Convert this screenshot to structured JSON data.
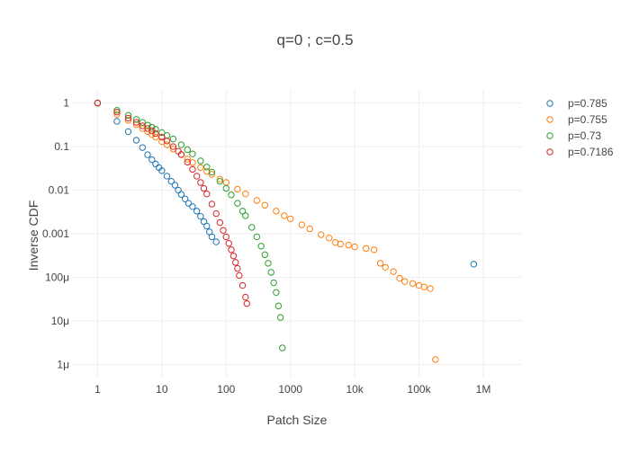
{
  "chart_data": {
    "type": "scatter",
    "title": "q=0 ; c=0.5",
    "xlabel": "Patch Size",
    "ylabel": "Inverse CDF",
    "x_scale": "log",
    "y_scale": "log",
    "xlim": [
      0.4,
      4000000
    ],
    "ylim": [
      5e-07,
      2
    ],
    "x_ticks": [
      {
        "value": 1,
        "label": "1"
      },
      {
        "value": 10,
        "label": "10"
      },
      {
        "value": 100,
        "label": "100"
      },
      {
        "value": 1000,
        "label": "1000"
      },
      {
        "value": 10000,
        "label": "10k"
      },
      {
        "value": 100000,
        "label": "100k"
      },
      {
        "value": 1000000,
        "label": "1M"
      }
    ],
    "y_ticks": [
      {
        "value": 1,
        "label": "1"
      },
      {
        "value": 0.1,
        "label": "0.1"
      },
      {
        "value": 0.01,
        "label": "0.01"
      },
      {
        "value": 0.001,
        "label": "0.001"
      },
      {
        "value": 0.0001,
        "label": "100μ"
      },
      {
        "value": 1e-05,
        "label": "10μ"
      },
      {
        "value": 1e-06,
        "label": "1μ"
      }
    ],
    "grid": true,
    "legend_position": "top-right",
    "series": [
      {
        "name": "p=0.785",
        "color": "#1f77b4",
        "x": [
          1,
          2,
          3,
          4,
          5,
          6,
          7,
          8,
          9,
          10,
          12,
          14,
          16,
          18,
          20,
          23,
          26,
          30,
          35,
          40,
          45,
          50,
          55,
          60,
          70,
          710000
        ],
        "y": [
          1,
          0.38,
          0.22,
          0.14,
          0.095,
          0.065,
          0.05,
          0.04,
          0.033,
          0.028,
          0.021,
          0.016,
          0.013,
          0.01,
          0.008,
          0.0063,
          0.005,
          0.0042,
          0.0033,
          0.0025,
          0.0019,
          0.0015,
          0.0011,
          0.00085,
          0.00065,
          0.0002
        ]
      },
      {
        "name": "p=0.755",
        "color": "#ff7f0e",
        "x": [
          1,
          2,
          3,
          4,
          5,
          6,
          7,
          8,
          10,
          12,
          15,
          20,
          25,
          30,
          40,
          50,
          60,
          80,
          100,
          150,
          200,
          300,
          400,
          600,
          800,
          1000,
          1500,
          2000,
          3000,
          4000,
          5000,
          6000,
          8000,
          10000,
          15000,
          20000,
          25000,
          30000,
          40000,
          50000,
          60000,
          80000,
          100000,
          120000,
          150000,
          180000
        ],
        "y": [
          1,
          0.55,
          0.4,
          0.32,
          0.26,
          0.22,
          0.19,
          0.165,
          0.13,
          0.11,
          0.088,
          0.065,
          0.052,
          0.043,
          0.033,
          0.027,
          0.023,
          0.018,
          0.015,
          0.0105,
          0.0082,
          0.0058,
          0.0045,
          0.0033,
          0.0026,
          0.0022,
          0.0016,
          0.0013,
          0.00095,
          0.0008,
          0.00063,
          0.00058,
          0.00055,
          0.0005,
          0.00046,
          0.00043,
          0.00021,
          0.00017,
          0.000135,
          9.5e-05,
          8e-05,
          7.2e-05,
          6.5e-05,
          6e-05,
          5.5e-05,
          1.3e-06
        ]
      },
      {
        "name": "p=0.73",
        "color": "#2ca02c",
        "x": [
          1,
          2,
          3,
          4,
          5,
          6,
          7,
          8,
          10,
          12,
          15,
          20,
          25,
          30,
          40,
          50,
          60,
          80,
          100,
          120,
          150,
          180,
          200,
          250,
          300,
          350,
          400,
          450,
          500,
          550,
          600,
          650,
          700,
          750
        ],
        "y": [
          1,
          0.68,
          0.52,
          0.42,
          0.36,
          0.31,
          0.28,
          0.25,
          0.21,
          0.18,
          0.15,
          0.11,
          0.085,
          0.068,
          0.047,
          0.034,
          0.026,
          0.016,
          0.011,
          0.0078,
          0.005,
          0.0033,
          0.0026,
          0.0014,
          0.00085,
          0.00052,
          0.00033,
          0.00021,
          0.00013,
          7.5e-05,
          4.5e-05,
          2.2e-05,
          1.2e-05,
          2.4e-06
        ]
      },
      {
        "name": "p=0.7186",
        "color": "#d62728",
        "x": [
          1,
          2,
          3,
          4,
          5,
          6,
          7,
          8,
          10,
          12,
          15,
          18,
          20,
          25,
          30,
          35,
          40,
          45,
          50,
          60,
          70,
          80,
          90,
          100,
          110,
          120,
          130,
          140,
          150,
          160,
          180,
          200,
          210
        ],
        "y": [
          1,
          0.62,
          0.45,
          0.36,
          0.3,
          0.26,
          0.23,
          0.2,
          0.165,
          0.135,
          0.1,
          0.078,
          0.066,
          0.044,
          0.03,
          0.021,
          0.015,
          0.011,
          0.0082,
          0.0048,
          0.0029,
          0.0018,
          0.0012,
          0.00085,
          0.0006,
          0.00043,
          0.00031,
          0.00022,
          0.00016,
          0.00011,
          6.5e-05,
          3.5e-05,
          2.5e-05
        ]
      }
    ]
  }
}
